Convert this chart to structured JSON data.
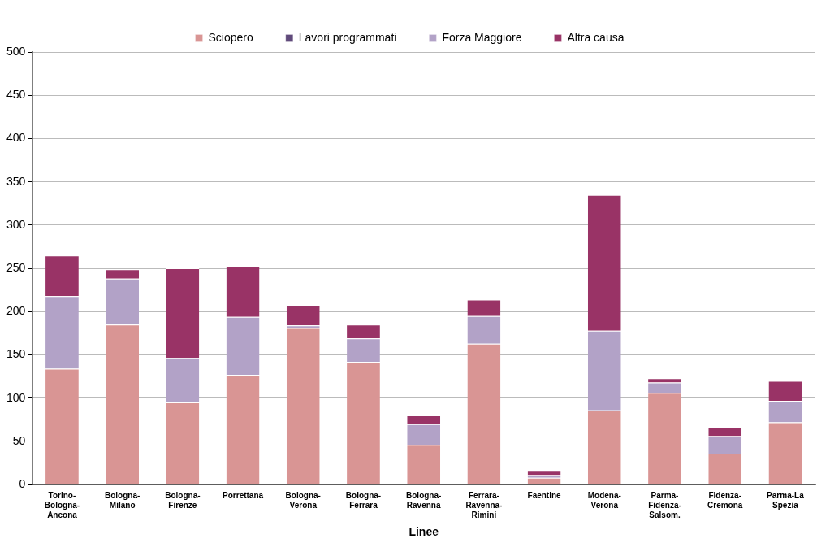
{
  "chart_data": {
    "type": "bar",
    "stacked": true,
    "xlabel": "Linee",
    "categories": [
      "Torino-Bologna-Ancona",
      "Bologna-Milano",
      "Bologna-Firenze",
      "Porrettana",
      "Bologna-Verona",
      "Bologna-Ferrara",
      "Bologna-Ravenna",
      "Ferrara-Ravenna-Rimini",
      "Faentine",
      "Modena-Verona",
      "Parma-Fidenza-Salsom.",
      "Fidenza-Cremona",
      "Parma-La Spezia"
    ],
    "series": [
      {
        "name": "Sciopero",
        "color": "#d99594",
        "values": [
          134,
          185,
          95,
          127,
          181,
          142,
          46,
          163,
          8,
          86,
          106,
          36,
          72
        ]
      },
      {
        "name": "Lavori programmati",
        "color": "#604a7b",
        "values": [
          0,
          0,
          0,
          0,
          0,
          0,
          0,
          0,
          0,
          0,
          0,
          0,
          0
        ]
      },
      {
        "name": "Forza Maggiore",
        "color": "#b2a2c7",
        "values": [
          84,
          53,
          51,
          67,
          3,
          27,
          24,
          32,
          3,
          92,
          12,
          20,
          25
        ]
      },
      {
        "name": "Altra causa",
        "color": "#993366",
        "values": [
          47,
          11,
          104,
          59,
          23,
          16,
          10,
          19,
          5,
          157,
          5,
          10,
          23
        ]
      }
    ],
    "ylim": [
      0,
      500
    ],
    "yticks": [
      0,
      50,
      100,
      150,
      200,
      250,
      300,
      350,
      400,
      450,
      500
    ],
    "grid": "y",
    "legend": "top"
  }
}
